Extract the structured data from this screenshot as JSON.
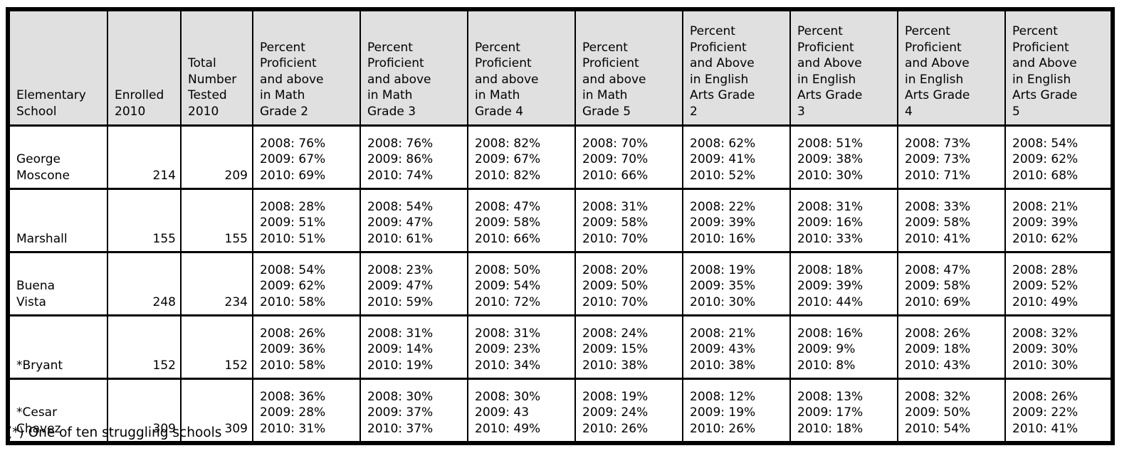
{
  "colors": {
    "header_bg": "#e0e0e0",
    "border": "#000000",
    "body_bg": "#ffffff",
    "text": "#000000"
  },
  "table": {
    "column_headers": [
      "Elementary\nSchool",
      "Enrolled\n2010",
      "Total\nNumber\nTested\n2010",
      "Percent\nProficient\nand above\nin Math\nGrade 2",
      "Percent\nProficient\nand above\nin Math\nGrade 3",
      "Percent\nProficient\nand above\nin Math\nGrade 4",
      "Percent\nProficient\nand above\nin Math\nGrade 5",
      "Percent\nProficient\nand Above\nin English\nArts Grade\n2",
      "Percent\nProficient\nand Above\nin English\nArts Grade\n3",
      "Percent\nProficient\nand Above\nin English\nArts Grade\n4",
      "Percent\nProficient\nand Above\nin English\nArts Grade\n5"
    ],
    "rows": [
      {
        "school": "George\nMoscone",
        "enrolled": "214",
        "tested": "209",
        "percent_cells": [
          [
            "2008: 76%",
            "2009: 67%",
            "2010: 69%"
          ],
          [
            "2008: 76%",
            "2009: 86%",
            "2010: 74%"
          ],
          [
            "2008: 82%",
            "2009: 67%",
            "2010: 82%"
          ],
          [
            "2008: 70%",
            "2009: 70%",
            "2010: 66%"
          ],
          [
            "2008: 62%",
            "2009: 41%",
            "2010: 52%"
          ],
          [
            "2008: 51%",
            "2009: 38%",
            "2010: 30%"
          ],
          [
            "2008: 73%",
            "2009: 73%",
            "2010: 71%"
          ],
          [
            "2008: 54%",
            "2009: 62%",
            "2010: 68%"
          ]
        ]
      },
      {
        "school": "Marshall",
        "enrolled": "155",
        "tested": "155",
        "percent_cells": [
          [
            "2008: 28%",
            "2009: 51%",
            "2010: 51%"
          ],
          [
            "2008: 54%",
            "2009: 47%",
            "2010: 61%"
          ],
          [
            "2008: 47%",
            "2009: 58%",
            "2010: 66%"
          ],
          [
            "2008: 31%",
            "2009: 58%",
            "2010: 70%"
          ],
          [
            "2008: 22%",
            "2009: 39%",
            "2010: 16%"
          ],
          [
            "2008: 31%",
            "2009: 16%",
            "2010: 33%"
          ],
          [
            "2008: 33%",
            "2009: 58%",
            "2010: 41%"
          ],
          [
            "2008: 21%",
            "2009: 39%",
            "2010: 62%"
          ]
        ]
      },
      {
        "school": "Buena\nVista",
        "enrolled": "248",
        "tested": "234",
        "percent_cells": [
          [
            "2008: 54%",
            "2009: 62%",
            "2010: 58%"
          ],
          [
            "2008: 23%",
            "2009: 47%",
            "2010: 59%"
          ],
          [
            "2008: 50%",
            "2009: 54%",
            "2010: 72%"
          ],
          [
            "2008: 20%",
            "2009: 50%",
            "2010: 70%"
          ],
          [
            "2008: 19%",
            "2009: 35%",
            "2010: 30%"
          ],
          [
            "2008: 18%",
            "2009: 39%",
            "2010: 44%"
          ],
          [
            "2008: 47%",
            "2009: 58%",
            "2010: 69%"
          ],
          [
            "2008: 28%",
            "2009: 52%",
            "2010: 49%"
          ]
        ]
      },
      {
        "school": "*Bryant",
        "enrolled": "152",
        "tested": "152",
        "percent_cells": [
          [
            "2008: 26%",
            "2009: 36%",
            "2010: 58%"
          ],
          [
            "2008: 31%",
            "2009: 14%",
            "2010: 19%"
          ],
          [
            "2008: 31%",
            "2009: 23%",
            "2010: 34%"
          ],
          [
            "2008: 24%",
            "2009: 15%",
            "2010: 38%"
          ],
          [
            "2008: 21%",
            "2009: 43%",
            "2010: 38%"
          ],
          [
            "2008: 16%",
            "2009: 9%",
            "2010: 8%"
          ],
          [
            "2008: 26%",
            "2009: 18%",
            "2010: 43%"
          ],
          [
            "2008: 32%",
            "2009: 30%",
            "2010: 30%"
          ]
        ]
      },
      {
        "school": "*Cesar\nChavez",
        "enrolled": "309",
        "tested": "309",
        "percent_cells": [
          [
            "2008: 36%",
            "2009: 28%",
            "2010: 31%"
          ],
          [
            "2008: 30%",
            "2009: 37%",
            "2010: 37%"
          ],
          [
            "2008: 30%",
            "2009: 43",
            "2010: 49%"
          ],
          [
            "2008: 19%",
            "2009: 24%",
            "2010: 26%"
          ],
          [
            "2008: 12%",
            "2009: 19%",
            "2010: 26%"
          ],
          [
            "2008: 13%",
            "2009: 17%",
            "2010: 18%"
          ],
          [
            "2008: 32%",
            "2009: 50%",
            "2010: 54%"
          ],
          [
            "2008: 26%",
            "2009: 22%",
            "2010: 41%"
          ]
        ]
      }
    ]
  },
  "footnote": "(*) One of ten struggling schools"
}
